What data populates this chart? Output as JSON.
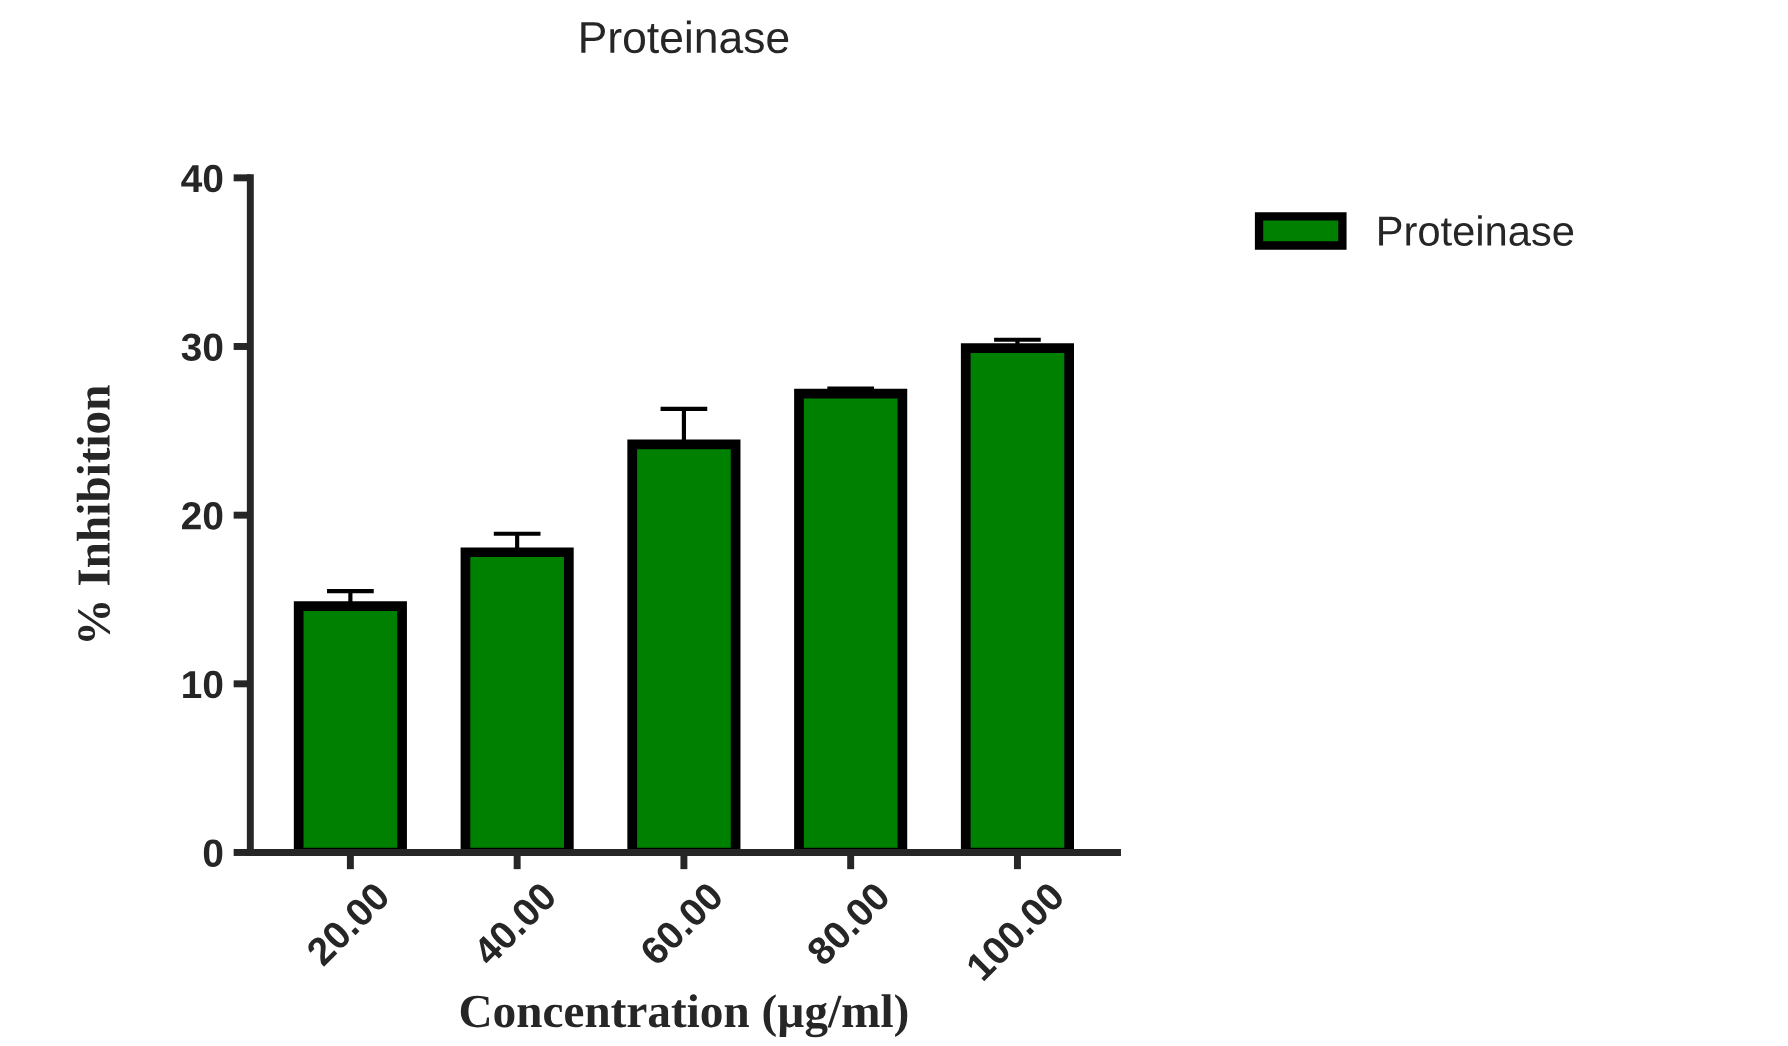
{
  "chart_data": {
    "type": "bar",
    "title": "Proteinase",
    "xlabel": "Concentration (µg/ml)",
    "ylabel": "% Inhibition",
    "categories": [
      "20.00",
      "40.00",
      "60.00",
      "80.00",
      "100.00"
    ],
    "series": [
      {
        "name": "Proteinase",
        "color": "#008000",
        "values": [
          14.6,
          17.8,
          24.2,
          27.2,
          29.9
        ],
        "errors": [
          [
            14.6,
            15.5
          ],
          [
            17.8,
            18.9
          ],
          [
            24.2,
            26.3
          ],
          [
            27.2,
            27.5
          ],
          [
            29.9,
            30.4
          ]
        ]
      }
    ],
    "ylim": [
      0,
      40
    ],
    "yticks": [
      0,
      10,
      20,
      30,
      40
    ],
    "grid": false,
    "legend": "top right"
  }
}
